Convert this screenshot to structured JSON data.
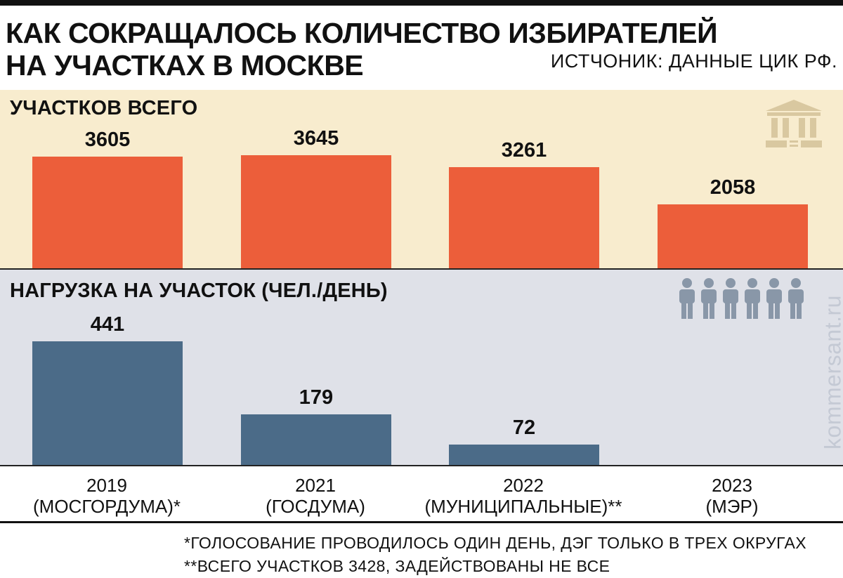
{
  "title_line1": "КАК СОКРАЩАЛОСЬ КОЛИЧЕСТВО ИЗБИРАТЕЛЕЙ",
  "title_line2": "НА УЧАСТКАХ В МОСКВЕ",
  "source": "ИСТЧОНИК: ДАННЫЕ ЦИК РФ.",
  "watermark": "kommersant.ru",
  "notes": [
    "*ГОЛОСОВАНИЕ ПРОВОДИЛОСЬ ОДИН ДЕНЬ, ДЭГ ТОЛЬКО В ТРЕХ ОКРУГАХ",
    "**ВСЕГО УЧАСТКОВ 3428, ЗАДЕЙСТВОВАНЫ НЕ ВСЕ"
  ],
  "icons": {
    "top": "government-building-icon",
    "bottom": "people-group-icon"
  },
  "colors": {
    "top_bars": "#ec5e3a",
    "bottom_bars": "#4b6b88",
    "top_bg": "#f8ecce",
    "bottom_bg": "#dfe1e8"
  },
  "chart_data": [
    {
      "type": "bar",
      "title": "УЧАСТКОВ ВСЕГО",
      "categories": [
        "2019\n(МОСГОРДУМА)*",
        "2021\n(ГОСДУМА)",
        "2022\n(МУНИЦИПАЛЬНЫЕ)**",
        "2023\n(МЭР)"
      ],
      "values": [
        3605,
        3645,
        3261,
        2058
      ],
      "value_labels": [
        "3605",
        "3645",
        "3261",
        "2058"
      ],
      "ylim": [
        0,
        4200
      ],
      "grid": false,
      "legend": "none"
    },
    {
      "type": "bar",
      "title": "НАГРУЗКА НА УЧАСТОК (ЧЕЛ./ДЕНЬ)",
      "categories": [
        "2019\n(МОСГОРДУМА)*",
        "2021\n(ГОСДУМА)",
        "2022\n(МУНИЦИПАЛЬНЫЕ)**",
        "2023\n(МЭР)"
      ],
      "values": [
        441,
        179,
        72,
        null
      ],
      "value_labels": [
        "441",
        "179",
        "72",
        ""
      ],
      "ylim": [
        0,
        500
      ],
      "grid": false,
      "legend": "none"
    }
  ]
}
